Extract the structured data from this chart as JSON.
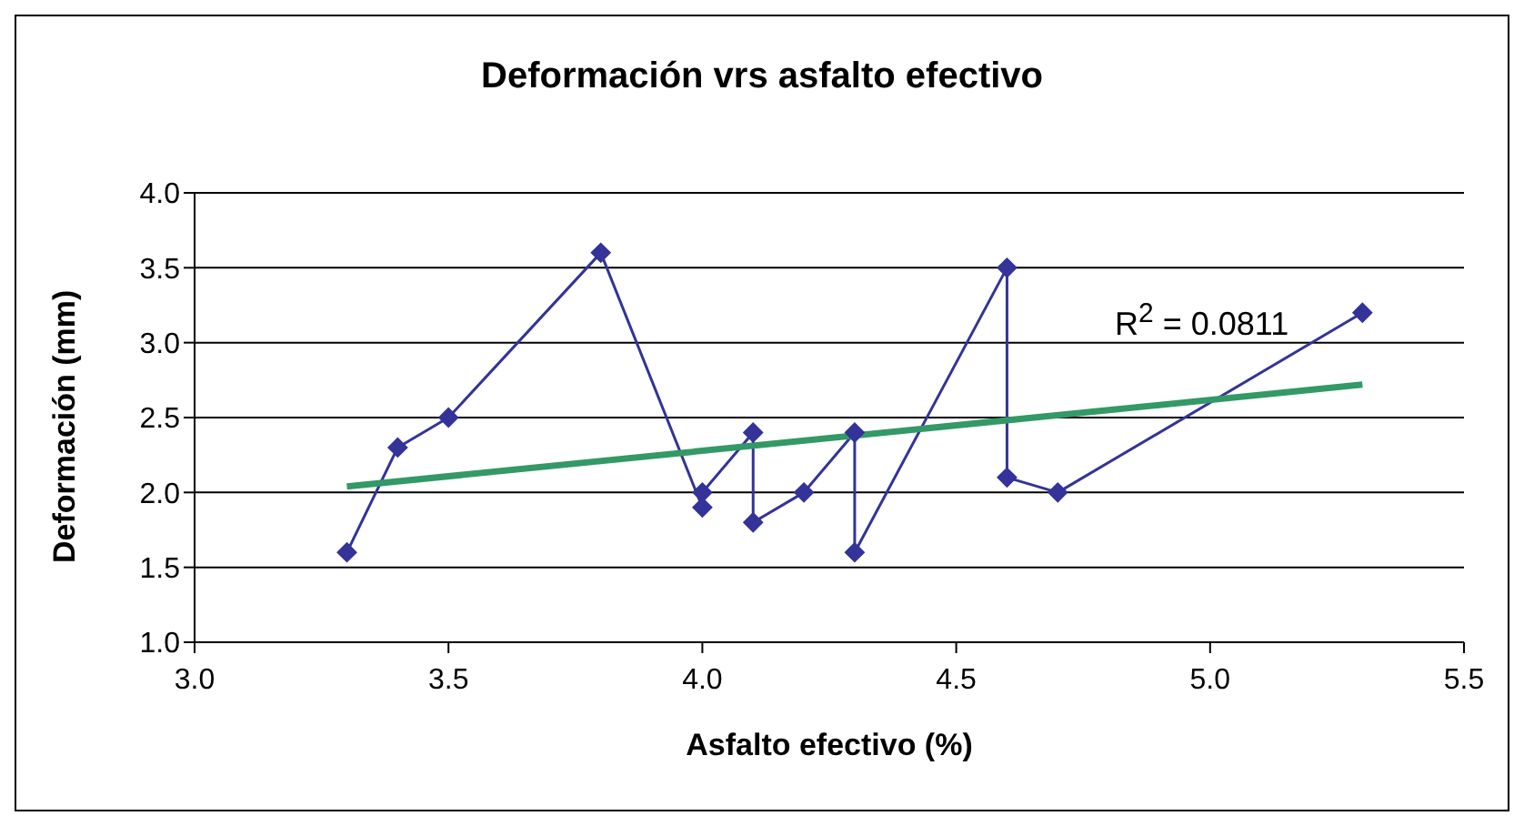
{
  "chart_data": {
    "type": "line",
    "title": "Deformación vrs asfalto efectivo",
    "xlabel": "Asfalto efectivo (%)",
    "ylabel": "Deformación (mm)",
    "annotations": [
      "R$^{2}$ = 0.0811"
    ],
    "series": [
      {
        "color": "#333399",
        "marker": "diamond",
        "x": [
          3.3,
          3.4,
          3.5,
          3.8,
          4.0,
          4.0,
          4.1,
          4.1,
          4.2,
          4.3,
          4.3,
          4.6,
          4.6,
          4.7,
          5.3
        ],
        "values": [
          1.6,
          2.3,
          2.5,
          3.6,
          1.9,
          2.0,
          2.4,
          1.8,
          2.0,
          2.4,
          1.6,
          3.5,
          2.1,
          2.0,
          3.2
        ]
      },
      {
        "color": "#339966",
        "marker": "none",
        "x": [
          3.3,
          5.3
        ],
        "values": [
          2.04,
          2.72
        ]
      }
    ],
    "xlim": [
      3.0,
      5.5
    ],
    "xticks": [
      {
        "value": 3.0,
        "label": "3.0"
      },
      {
        "value": 3.5,
        "label": "3.5"
      },
      {
        "value": 4.0,
        "label": "4.0"
      },
      {
        "value": 4.5,
        "label": "4.5"
      },
      {
        "value": 5.0,
        "label": "5.0"
      },
      {
        "value": 5.5,
        "label": "5.5"
      }
    ],
    "ylim": [
      1.0,
      4.0
    ],
    "yticks": [
      {
        "value": 1.0,
        "label": "1.0"
      },
      {
        "value": 1.5,
        "label": "1.5"
      },
      {
        "value": 2.0,
        "label": "2.0"
      },
      {
        "value": 2.5,
        "label": "2.5"
      },
      {
        "value": 3.0,
        "label": "3.0"
      },
      {
        "value": 3.5,
        "label": "3.5"
      },
      {
        "value": 4.0,
        "label": "4.0"
      }
    ],
    "grid": "y",
    "line_style": "solid"
  }
}
